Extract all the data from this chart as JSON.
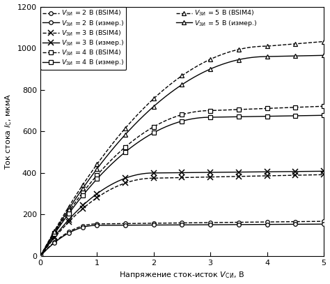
{
  "xlabel": "Напряжение сток-исток $V_\\mathsf{СИ}$, В",
  "ylabel": "Ток стока $I_\\mathsf{С}$, мкмА",
  "xlim": [
    0,
    5
  ],
  "ylim": [
    0,
    1200
  ],
  "xticks": [
    0,
    1,
    2,
    3,
    4,
    5
  ],
  "yticks": [
    0,
    200,
    400,
    600,
    800,
    1000,
    1200
  ],
  "background_color": "#ffffff",
  "series": [
    {
      "label_col": 0,
      "label": "$V_{\\mathsf{ЗИ}}$ = 2 В (BSIM4)",
      "linestyle": "dashed",
      "marker": "o",
      "sat_current": 155,
      "lambda": 0.02,
      "vth": 1.0
    },
    {
      "label_col": 0,
      "label": "$V_{\\mathsf{ЗИ}}$ = 2 В (измер.)",
      "linestyle": "solid",
      "marker": "o",
      "sat_current": 148,
      "lambda": 0.01,
      "vth": 1.0
    },
    {
      "label_col": 0,
      "label": "$V_{\\mathsf{ЗИ}}$ = 3 В (BSIM4)",
      "linestyle": "dashed",
      "marker": "x",
      "sat_current": 375,
      "lambda": 0.015,
      "vth": 1.0
    },
    {
      "label_col": 0,
      "label": "$V_{\\mathsf{ЗИ}}$ = 3 В (измер.)",
      "linestyle": "solid",
      "marker": "x",
      "sat_current": 400,
      "lambda": 0.007,
      "vth": 1.0
    },
    {
      "label_col": 0,
      "label": "$V_{\\mathsf{ЗИ}}$ = 4 В (BSIM4)",
      "linestyle": "dashed",
      "marker": "s",
      "sat_current": 700,
      "lambda": 0.015,
      "vth": 1.0
    },
    {
      "label_col": 0,
      "label": "$V_{\\mathsf{ЗИ}}$ = 4 В (измер.)",
      "linestyle": "solid",
      "marker": "s",
      "sat_current": 668,
      "lambda": 0.007,
      "vth": 1.0
    },
    {
      "label_col": 1,
      "label": "$V_{\\mathsf{ЗИ}}$ = 5 В (BSIM4)",
      "linestyle": "dashed",
      "marker": "^",
      "sat_current": 1010,
      "lambda": 0.022,
      "vth": 1.0
    },
    {
      "label_col": 1,
      "label": "$V_{\\mathsf{ЗИ}}$ = 5 В (измер.)",
      "linestyle": "solid",
      "marker": "^",
      "sat_current": 960,
      "lambda": 0.006,
      "vth": 1.0
    }
  ],
  "figsize": [
    4.74,
    4.07
  ],
  "dpi": 100
}
